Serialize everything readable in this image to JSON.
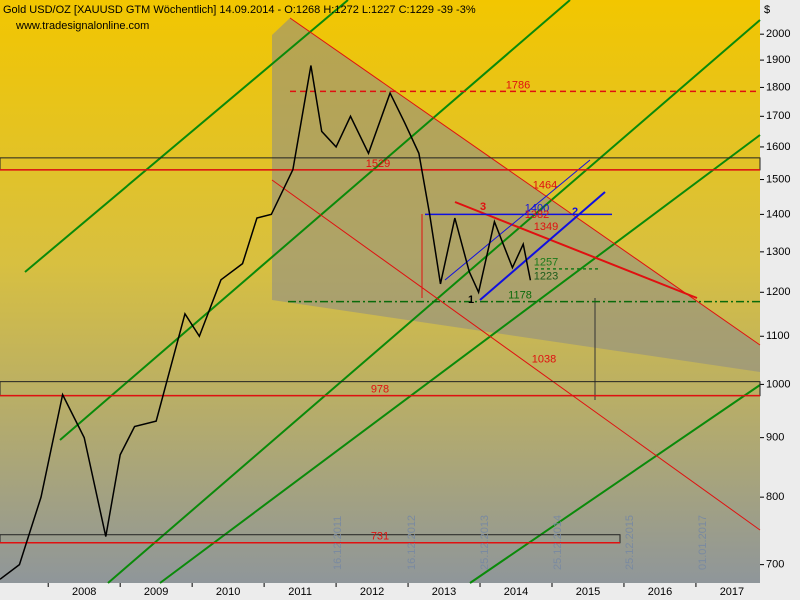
{
  "chart_data": {
    "type": "line",
    "title": "Gold USD/OZ [XAUUSD GTM  Wöchentlich] 14.09.2014 - O:1268 H:1272 L:1227 C:1229 -39 -3%",
    "subtitle": "www.tradesignalonline.com",
    "y_unit": "$",
    "log_scale": true,
    "color": "#000000",
    "xlim": [
      2007.33,
      2017.89
    ],
    "ylim": [
      675,
      2140
    ],
    "xticks": [
      {
        "value": 2008.5,
        "label": "2008"
      },
      {
        "value": 2009.5,
        "label": "2009"
      },
      {
        "value": 2010.5,
        "label": "2010"
      },
      {
        "value": 2011.5,
        "label": "2011"
      },
      {
        "value": 2012.5,
        "label": "2012"
      },
      {
        "value": 2013.5,
        "label": "2013"
      },
      {
        "value": 2014.5,
        "label": "2014"
      },
      {
        "value": 2015.5,
        "label": "2015"
      },
      {
        "value": 2016.5,
        "label": "2016"
      },
      {
        "value": 2017.5,
        "label": "2017"
      }
    ],
    "yticks": [
      700,
      800,
      900,
      1000,
      1100,
      1200,
      1300,
      1400,
      1500,
      1600,
      1700,
      1800,
      1900,
      2000
    ],
    "x": [
      2007.33,
      2007.6,
      2007.9,
      2008.2,
      2008.5,
      2008.8,
      2009.0,
      2009.2,
      2009.5,
      2009.9,
      2010.1,
      2010.4,
      2010.7,
      2010.9,
      2011.1,
      2011.4,
      2011.65,
      2011.8,
      2012.0,
      2012.2,
      2012.45,
      2012.75,
      2012.95,
      2013.15,
      2013.3,
      2013.45,
      2013.65,
      2013.85,
      2013.98,
      2014.2,
      2014.45,
      2014.6,
      2014.7
    ],
    "values": [
      680,
      700,
      800,
      980,
      900,
      740,
      870,
      920,
      930,
      1150,
      1100,
      1230,
      1270,
      1390,
      1400,
      1530,
      1880,
      1650,
      1600,
      1700,
      1580,
      1780,
      1680,
      1580,
      1400,
      1220,
      1390,
      1250,
      1200,
      1380,
      1260,
      1320,
      1229
    ],
    "levels": [
      1786,
      1529,
      1464,
      1400,
      1382,
      1349,
      1257,
      1223,
      1178,
      1038,
      978,
      731
    ],
    "wave_labels": [
      "1",
      "2",
      "3"
    ],
    "date_labels": [
      "16.12.2011",
      "16.12.2012",
      "25.12.2013",
      "25.12.2014",
      "25.12.2015",
      "01.01.2017"
    ]
  }
}
